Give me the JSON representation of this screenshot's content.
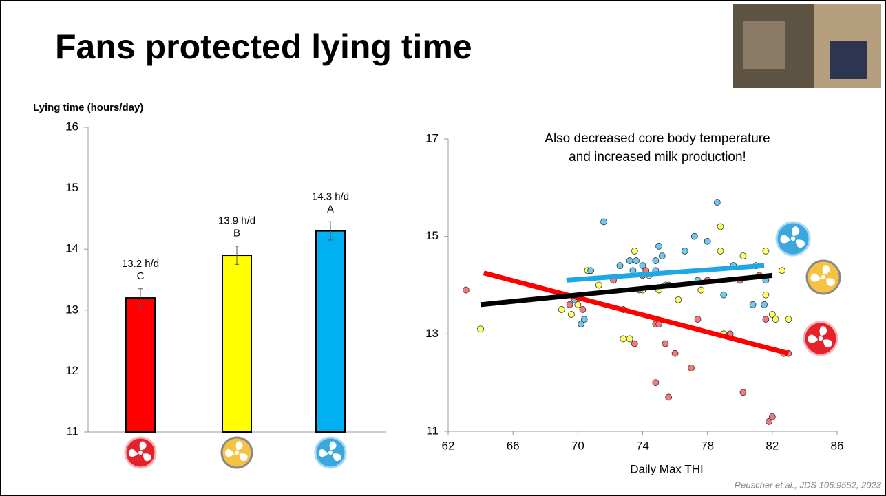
{
  "title": "Fans protected lying time",
  "citation": "Reuscher et al., JDS 106:9552, 2023",
  "chart_data": [
    {
      "type": "bar",
      "y_label": "Lying time (hours/day)",
      "categories": [
        null,
        null,
        null
      ],
      "values": [
        13.2,
        13.9,
        14.3
      ],
      "value_labels": [
        "13.2 h/d",
        "13.9 h/d",
        "14.3 h/d"
      ],
      "letters": [
        "C",
        "B",
        "A"
      ],
      "errors": [
        0.15,
        0.15,
        0.15
      ],
      "colors": [
        "#ff0000",
        "#ffff00",
        "#00b0f0"
      ],
      "ylim": [
        11,
        16
      ],
      "yticks": [
        11,
        12,
        13,
        14,
        15,
        16
      ],
      "grid": false
    },
    {
      "type": "scatter",
      "x_label": "Daily Max THI",
      "annotation": [
        "Also decreased core body temperature",
        "and increased milk production!"
      ],
      "xlim": [
        62,
        86
      ],
      "xticks": [
        62,
        66,
        70,
        74,
        78,
        82,
        86
      ],
      "ylim": [
        11,
        17
      ],
      "yticks": [
        11,
        13,
        15,
        17
      ],
      "grid": false,
      "series": [
        {
          "color": "#f4777b",
          "x": [
            63.1,
            69.5,
            70.3,
            72.2,
            72.8,
            73.5,
            74,
            74.2,
            74.8,
            75,
            75.6,
            75.4,
            74.8,
            76,
            77,
            77.4,
            78,
            79.4,
            80,
            80.2,
            81.2,
            81.6,
            81.8,
            82,
            82.7,
            83
          ],
          "values": [
            13.9,
            13.6,
            13.5,
            14.1,
            13.5,
            12.8,
            14.2,
            14.3,
            13.2,
            13.2,
            11.7,
            12.8,
            12.0,
            12.6,
            12.3,
            13.3,
            14.1,
            13.0,
            14.1,
            11.8,
            14.2,
            13.3,
            11.2,
            11.3,
            12.6,
            12.6
          ]
        },
        {
          "color": "#ffff66",
          "x": [
            64,
            69,
            69.6,
            70,
            70.6,
            71.3,
            72.8,
            73.2,
            73.5,
            74,
            74.4,
            75,
            75.4,
            76.2,
            77.6,
            78.8,
            78.8,
            79,
            80.2,
            81,
            81.6,
            81.6,
            82,
            82.2,
            82.6,
            83
          ],
          "values": [
            13.1,
            13.5,
            13.4,
            13.6,
            14.3,
            14.0,
            12.9,
            12.9,
            14.7,
            13.9,
            14.2,
            13.9,
            14.0,
            13.7,
            13.9,
            15.2,
            14.7,
            13.0,
            14.6,
            14.4,
            14.7,
            13.8,
            13.4,
            13.3,
            14.3,
            13.3
          ]
        },
        {
          "color": "#6fc8f0",
          "x": [
            69.8,
            70.2,
            70.4,
            70.8,
            71.6,
            72.6,
            73.2,
            73.4,
            73.6,
            73.8,
            74,
            74.8,
            74.8,
            75,
            75.2,
            75.6,
            76.6,
            77.4,
            77.2,
            78,
            78.6,
            79,
            79.6,
            80.8,
            81.6,
            81.5
          ],
          "values": [
            13.7,
            13.2,
            13.3,
            14.3,
            15.3,
            14.4,
            14.5,
            14.3,
            14.5,
            13.9,
            14.4,
            14.3,
            14.5,
            14.8,
            14.6,
            14.0,
            14.7,
            14.1,
            15.0,
            14.9,
            15.7,
            13.8,
            14.4,
            13.6,
            14.1,
            13.6
          ]
        }
      ],
      "trendlines": [
        {
          "color": "#ff0000",
          "x": [
            64.2,
            83
          ],
          "values": [
            14.25,
            12.6
          ]
        },
        {
          "color": "#000000",
          "x": [
            64,
            82
          ],
          "values": [
            13.6,
            14.2
          ]
        },
        {
          "color": "#1ea7e6",
          "x": [
            69.3,
            81.5
          ],
          "values": [
            14.1,
            14.4
          ]
        }
      ]
    }
  ]
}
